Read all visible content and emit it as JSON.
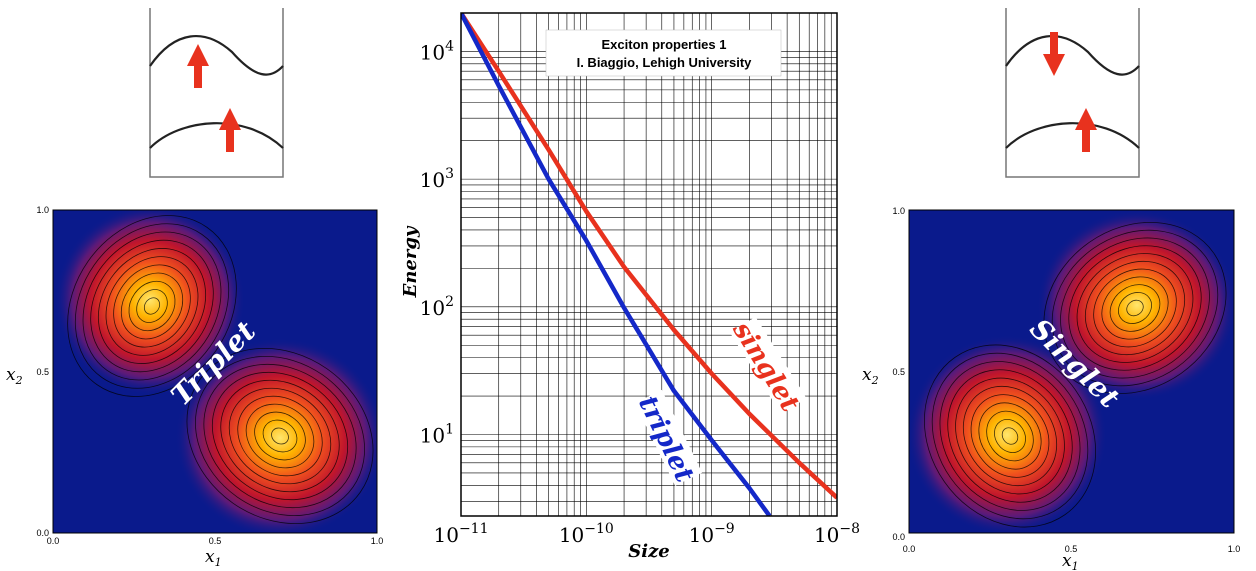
{
  "chart_data": [
    {
      "type": "line",
      "title": "Exciton properties 1",
      "subtitle": "I. Biaggio,  Lehigh University",
      "xlabel": "Size",
      "ylabel": "Energy",
      "xscale": "log",
      "yscale": "log",
      "xlim": [
        1e-11,
        1e-08
      ],
      "ylim": [
        2.3,
        20000
      ],
      "grid": true,
      "x_tick_labels": [
        {
          "base": "10",
          "exp": "−11"
        },
        {
          "base": "10",
          "exp": "−10"
        },
        {
          "base": "10",
          "exp": "−9"
        },
        {
          "base": "10",
          "exp": "−8"
        }
      ],
      "y_tick_labels": [
        {
          "base": "10",
          "exp": "1"
        },
        {
          "base": "10",
          "exp": "2"
        },
        {
          "base": "10",
          "exp": "3"
        },
        {
          "base": "10",
          "exp": "4"
        }
      ],
      "series": [
        {
          "name": "singlet",
          "color": "#e8321e",
          "x": [
            1e-11,
            2e-11,
            5e-11,
            1e-10,
            2e-10,
            5e-10,
            1e-09,
            2e-09,
            5e-09,
            1e-08
          ],
          "y": [
            20000,
            7000,
            1700,
            560,
            205,
            66,
            30,
            14.5,
            6.0,
            3.2
          ]
        },
        {
          "name": "triplet",
          "color": "#1428c8",
          "x": [
            1e-11,
            2e-11,
            5e-11,
            1e-10,
            2e-10,
            5e-10,
            1e-09,
            2e-09,
            2.9e-09
          ],
          "y": [
            20000,
            5400,
            1000,
            330,
            98,
            22,
            9.0,
            3.8,
            2.3
          ]
        }
      ]
    },
    {
      "type": "heatmap",
      "label": "Triplet",
      "xlabel": "x",
      "xlabel_sub": "1",
      "ylabel": "x",
      "ylabel_sub": "2",
      "x_ticks": [
        "0.0",
        "0.5",
        "1.0"
      ],
      "y_ticks": [
        "0.0",
        "0.5",
        "1.0"
      ],
      "peaks": [
        [
          0.3,
          0.7
        ],
        [
          0.7,
          0.3
        ]
      ],
      "colormap": [
        "#0a1a8c",
        "#5a1a7a",
        "#c0152c",
        "#f0501e",
        "#ffb400",
        "#ffe66e"
      ]
    },
    {
      "type": "heatmap",
      "label": "Singlet",
      "xlabel": "x",
      "xlabel_sub": "1",
      "ylabel": "x",
      "ylabel_sub": "2",
      "x_ticks": [
        "0.0",
        "0.5",
        "1.0"
      ],
      "y_ticks": [
        "0.0",
        "0.5",
        "1.0"
      ],
      "peaks": [
        [
          0.7,
          0.7
        ],
        [
          0.3,
          0.3
        ]
      ],
      "colormap": [
        "#0a1a8c",
        "#5a1a7a",
        "#c0152c",
        "#f0501e",
        "#ffb400",
        "#ffe66e"
      ]
    }
  ],
  "diagrams": {
    "left": {
      "top_spin": "up",
      "bottom_spin": "up"
    },
    "right": {
      "top_spin": "down",
      "bottom_spin": "up"
    },
    "arrow_color": "#e8321e"
  }
}
